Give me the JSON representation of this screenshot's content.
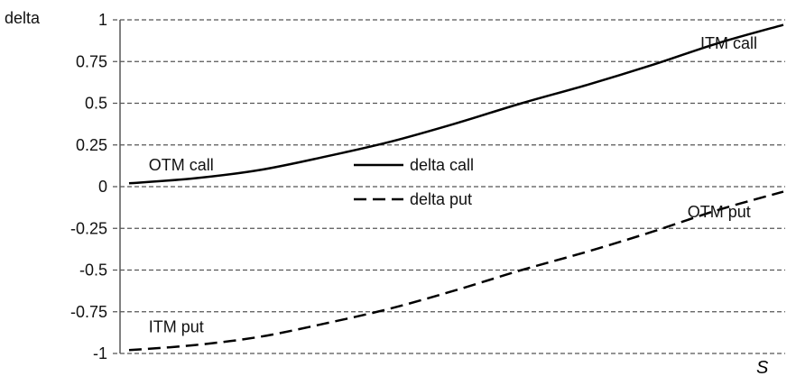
{
  "chart_data": {
    "type": "line",
    "title": "",
    "xlabel": "S",
    "ylabel": "delta",
    "ylim": [
      -1,
      1
    ],
    "yticks": [
      "1",
      "0.75",
      "0.5",
      "0.25",
      "0",
      "-0.25",
      "-0.5",
      "-0.75",
      "-1"
    ],
    "grid": true,
    "legend_position": "center",
    "series": [
      {
        "name": "delta call",
        "style": "solid",
        "color": "#000000",
        "x": [
          0,
          0.1,
          0.2,
          0.3,
          0.4,
          0.5,
          0.6,
          0.7,
          0.8,
          0.9,
          1.0
        ],
        "y": [
          0.02,
          0.05,
          0.1,
          0.18,
          0.27,
          0.38,
          0.5,
          0.61,
          0.73,
          0.86,
          0.97
        ]
      },
      {
        "name": "delta put",
        "style": "dashed",
        "color": "#000000",
        "x": [
          0,
          0.1,
          0.2,
          0.3,
          0.4,
          0.5,
          0.6,
          0.7,
          0.8,
          0.9,
          1.0
        ],
        "y": [
          -0.98,
          -0.95,
          -0.9,
          -0.82,
          -0.73,
          -0.62,
          -0.5,
          -0.39,
          -0.27,
          -0.14,
          -0.03
        ]
      }
    ],
    "annotations": [
      {
        "key": "otm_call",
        "text": "OTM call",
        "x": 0.03,
        "y": 0.13
      },
      {
        "key": "itm_call",
        "text": "ITM call",
        "x": 0.96,
        "y": 0.86
      },
      {
        "key": "otm_put",
        "text": "OTM put",
        "x": 0.95,
        "y": -0.15
      },
      {
        "key": "itm_put",
        "text": "ITM put",
        "x": 0.03,
        "y": -0.84
      }
    ]
  }
}
